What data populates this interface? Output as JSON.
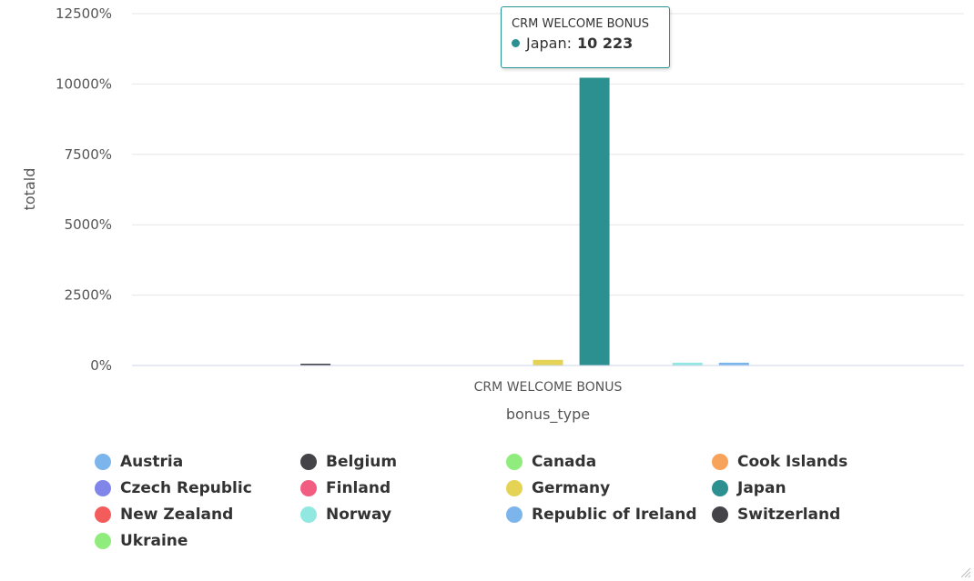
{
  "chart_data": {
    "type": "bar",
    "categories": [
      "CRM WELCOME BONUS"
    ],
    "xlabel": "bonus_type",
    "ylabel": "totald",
    "ylim": [
      0,
      12500
    ],
    "yticks": [
      0,
      2500,
      5000,
      7500,
      10000,
      12500
    ],
    "ytick_labels": [
      "0%",
      "2500%",
      "5000%",
      "7500%",
      "10000%",
      "12500%"
    ],
    "grid": true,
    "legend_position": "bottom",
    "series": [
      {
        "name": "Austria",
        "color": "#7cb5ec",
        "values": [
          0
        ]
      },
      {
        "name": "Belgium",
        "color": "#434348",
        "values": [
          40
        ]
      },
      {
        "name": "Canada",
        "color": "#90ed7d",
        "values": [
          0
        ]
      },
      {
        "name": "Cook Islands",
        "color": "#f7a35c",
        "values": [
          0
        ]
      },
      {
        "name": "Czech Republic",
        "color": "#8085e9",
        "values": [
          0
        ]
      },
      {
        "name": "Finland",
        "color": "#f15c80",
        "values": [
          0
        ]
      },
      {
        "name": "Germany",
        "color": "#e4d354",
        "values": [
          200
        ]
      },
      {
        "name": "Japan",
        "color": "#2b908f",
        "values": [
          10223
        ]
      },
      {
        "name": "New Zealand",
        "color": "#f45b5b",
        "values": [
          0
        ]
      },
      {
        "name": "Norway",
        "color": "#91e8e1",
        "values": [
          100
        ]
      },
      {
        "name": "Republic of Ireland",
        "color": "#7cb5ec",
        "values": [
          100
        ]
      },
      {
        "name": "Switzerland",
        "color": "#434348",
        "values": [
          0
        ]
      },
      {
        "name": "Ukraine",
        "color": "#90ed7d",
        "values": [
          0
        ]
      }
    ]
  },
  "tooltip": {
    "title": "CRM WELCOME BONUS",
    "series": "Japan",
    "separator": ":",
    "value_text": "10 223",
    "color": "#2b908f"
  }
}
